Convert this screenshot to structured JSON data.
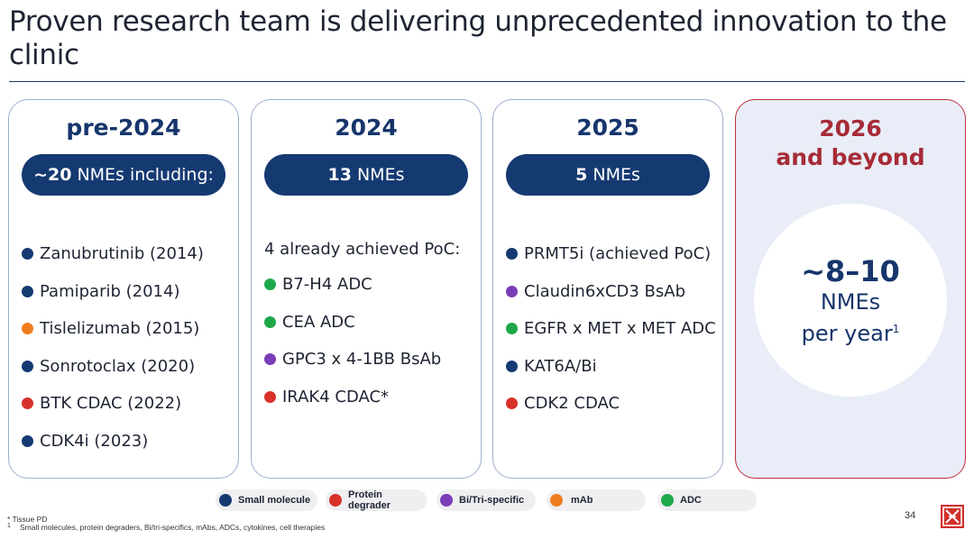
{
  "title": "Proven research team is delivering unprecedented innovation to the clinic",
  "colors": {
    "navy": "#153a72",
    "small_molecule": "#153a72",
    "protein_degrader": "#d8312a",
    "bi_tri_specific": "#7a3cb8",
    "mab": "#ef7d1e",
    "adc": "#1ea84a",
    "future_red": "#a62b37"
  },
  "columns": [
    {
      "heading": "pre-2024",
      "pill_bold": "~20",
      "pill_text": "NMEs including:",
      "items": [
        {
          "label": "Zanubrutinib (2014)",
          "type": "small_molecule"
        },
        {
          "label": "Pamiparib (2014)",
          "type": "small_molecule"
        },
        {
          "label": "Tislelizumab (2015)",
          "type": "mab"
        },
        {
          "label": "Sonrotoclax (2020)",
          "type": "small_molecule"
        },
        {
          "label": "BTK CDAC (2022)",
          "type": "protein_degrader"
        },
        {
          "label": "CDK4i (2023)",
          "type": "small_molecule"
        }
      ]
    },
    {
      "heading": "2024",
      "pill_bold": "13",
      "pill_text": "NMEs",
      "subheading": "4 already achieved PoC:",
      "items": [
        {
          "label": "B7-H4 ADC",
          "type": "adc"
        },
        {
          "label": "CEA ADC",
          "type": "adc"
        },
        {
          "label": "GPC3 x 4-1BB BsAb",
          "type": "bi_tri_specific"
        },
        {
          "label": "IRAK4 CDAC*",
          "type": "protein_degrader"
        }
      ]
    },
    {
      "heading": "2025",
      "pill_bold": "5",
      "pill_text": "NMEs",
      "items": [
        {
          "label": "PRMT5i (achieved PoC)",
          "type": "small_molecule"
        },
        {
          "label": "Claudin6xCD3 BsAb",
          "type": "bi_tri_specific"
        },
        {
          "label": "EGFR x MET x MET ADC",
          "type": "adc"
        },
        {
          "label": "KAT6A/Bi",
          "type": "small_molecule"
        },
        {
          "label": "CDK2 CDAC",
          "type": "protein_degrader"
        }
      ]
    },
    {
      "heading_line1": "2026",
      "heading_line2": "and beyond",
      "circle_big": "~8–10",
      "circle_line2": "NMEs",
      "circle_line3": "per year",
      "circle_sup": "1"
    }
  ],
  "legend": [
    {
      "label": "Small molecule",
      "type": "small_molecule"
    },
    {
      "label": "Protein degrader",
      "type": "protein_degrader"
    },
    {
      "label": "Bi/Tri-specific",
      "type": "bi_tri_specific"
    },
    {
      "label": "mAb",
      "type": "mab"
    },
    {
      "label": "ADC",
      "type": "adc"
    }
  ],
  "footnotes": {
    "tissue": "* Tissue PD",
    "note1_mark": "1",
    "note1": "Small molecules, protein degraders, Bi/tri-specifics, mAbs, ADCs, cytokines, cell therapies"
  },
  "page_number": "34"
}
